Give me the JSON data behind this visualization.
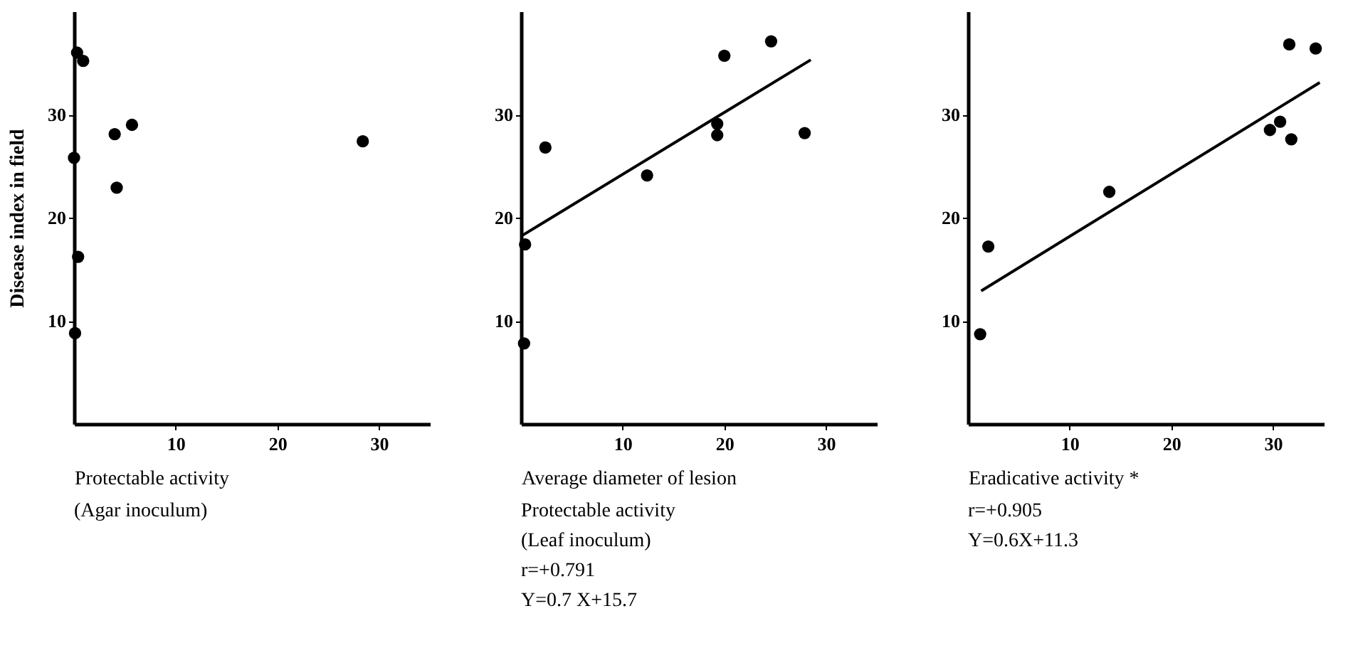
{
  "chart_data": [
    {
      "type": "scatter",
      "xlabel": "Protectable activity",
      "ylabel": "Disease index in field",
      "annotations": [
        "(Agar inoculum)"
      ],
      "xlim": [
        0,
        35
      ],
      "ylim": [
        0,
        40
      ],
      "xticks": [
        10,
        20,
        30
      ],
      "yticks": [
        10,
        20,
        30
      ],
      "series": [
        {
          "marker": "circle",
          "color": "#000000",
          "x": [
            0.3,
            0.9,
            4.0,
            5.7,
            4.2,
            28.4,
            0.0,
            0.4,
            0.1
          ],
          "values": [
            36.0,
            35.2,
            28.1,
            29.0,
            22.9,
            27.4,
            25.8,
            16.2,
            8.8
          ]
        }
      ]
    },
    {
      "type": "scatter",
      "xlabel": "Average diameter of lesion",
      "annotations": [
        "Protectable activity",
        "(Leaf inoculum)",
        "r=+0.791",
        "Y=0.7 X+15.7"
      ],
      "xlim": [
        0,
        35
      ],
      "ylim": [
        0,
        40
      ],
      "xticks": [
        10,
        20,
        30
      ],
      "yticks": [
        10,
        20,
        30
      ],
      "series": [
        {
          "marker": "circle",
          "color": "#000000",
          "x": [
            2.4,
            12.4,
            19.3,
            19.3,
            20.0,
            24.6,
            27.9,
            0.4,
            0.3
          ],
          "values": [
            26.8,
            24.1,
            28.0,
            29.1,
            35.7,
            37.1,
            28.2,
            17.4,
            7.8
          ]
        },
        {
          "type": "line",
          "color": "#000000",
          "x": [
            0,
            28.5
          ],
          "values": [
            18.2,
            35.3
          ]
        }
      ]
    },
    {
      "type": "scatter",
      "xlabel": "Eradicative activity *",
      "annotations": [
        "r=+0.905",
        "Y=0.6X+11.3"
      ],
      "xlim": [
        0,
        35
      ],
      "ylim": [
        0,
        40
      ],
      "xticks": [
        10,
        20,
        30
      ],
      "yticks": [
        10,
        20,
        30
      ],
      "series": [
        {
          "marker": "circle",
          "color": "#000000",
          "x": [
            1.2,
            2.0,
            13.9,
            29.7,
            30.7,
            31.8,
            31.6,
            34.2
          ],
          "values": [
            8.7,
            17.2,
            22.5,
            28.5,
            29.3,
            27.6,
            36.8,
            36.4
          ]
        },
        {
          "type": "line",
          "color": "#000000",
          "x": [
            1.3,
            34.6
          ],
          "values": [
            12.9,
            33.1
          ]
        }
      ]
    }
  ]
}
